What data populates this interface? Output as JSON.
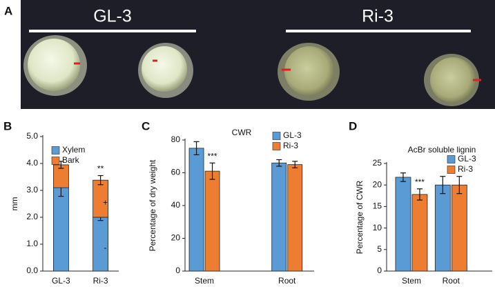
{
  "panel_a": {
    "label": "A",
    "groups": [
      "GL-3",
      "Ri-3"
    ]
  },
  "chart_data": [
    {
      "type": "bar",
      "stacked": true,
      "panel_label": "B",
      "y_label": "mm",
      "categories": [
        "GL-3",
        "Ri-3"
      ],
      "series": [
        {
          "name": "Xylem",
          "color": "#5b9bd5",
          "values": [
            3.1,
            2.0
          ],
          "errors": [
            0.32,
            0.12
          ],
          "inner_labels": [
            null,
            "-"
          ]
        },
        {
          "name": "Bark",
          "color": "#ed7d31",
          "values": [
            0.85,
            1.38
          ],
          "errors": [
            0.13,
            0.17
          ],
          "inner_labels": [
            null,
            "+"
          ],
          "significance": [
            null,
            "**"
          ]
        }
      ],
      "ylim": [
        0,
        5
      ],
      "yticks": [
        {
          "value": 0,
          "label": "0.0"
        },
        {
          "value": 1,
          "label": "1.0"
        },
        {
          "value": 2,
          "label": "2.0"
        },
        {
          "value": 3,
          "label": "3.0"
        },
        {
          "value": 4,
          "label": "4.0"
        },
        {
          "value": 5,
          "label": "5.0"
        }
      ]
    },
    {
      "type": "bar",
      "panel_label": "C",
      "title": "CWR",
      "y_label": "Percentage of dry weight",
      "categories": [
        "Stem",
        "Root"
      ],
      "series": [
        {
          "name": "GL-3",
          "color": "#5b9bd5",
          "values": [
            75,
            66
          ],
          "errors": [
            4,
            2
          ]
        },
        {
          "name": "Ri-3",
          "color": "#ed7d31",
          "values": [
            61,
            65
          ],
          "errors": [
            5,
            2
          ],
          "significance": [
            "***",
            null
          ]
        }
      ],
      "ylim": [
        0,
        80
      ],
      "yticks": [
        0,
        20,
        40,
        60,
        80
      ]
    },
    {
      "type": "bar",
      "panel_label": "D",
      "title": "AcBr soluble lignin",
      "y_label": "Percentage of CWR",
      "categories": [
        "Stem",
        "Root"
      ],
      "series": [
        {
          "name": "GL-3",
          "color": "#5b9bd5",
          "values": [
            21.8,
            20
          ],
          "errors": [
            1,
            2
          ]
        },
        {
          "name": "Ri-3",
          "color": "#ed7d31",
          "values": [
            17.8,
            20
          ],
          "errors": [
            1.3,
            2
          ],
          "significance": [
            "***",
            null
          ]
        }
      ],
      "ylim": [
        0,
        25
      ],
      "yticks": [
        0,
        5,
        10,
        15,
        20,
        25
      ]
    }
  ]
}
